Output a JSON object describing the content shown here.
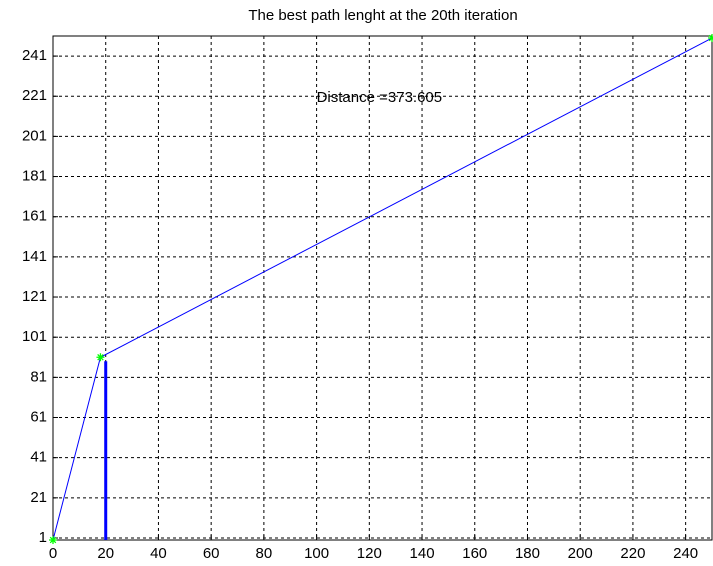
{
  "chart_data": {
    "type": "line",
    "title": "The best path lenght at the 20th iteration",
    "series": [
      {
        "color": "#0000ff",
        "line_width": 1,
        "marker": "*",
        "marker_color": "#00ff00",
        "x": [
          0,
          18,
          250
        ],
        "y": [
          0,
          91,
          250
        ]
      },
      {
        "color": "#0000ff",
        "line_width": 3,
        "x": [
          20,
          20
        ],
        "y": [
          0,
          89
        ]
      }
    ],
    "annotations": [
      {
        "text": "Distance =373.605",
        "x": 100,
        "y": 220
      }
    ],
    "xlim": [
      0,
      250
    ],
    "xticks": [
      0,
      20,
      40,
      60,
      80,
      100,
      120,
      140,
      160,
      180,
      200,
      220,
      240
    ],
    "ylim": [
      0,
      251
    ],
    "yticks": [
      1,
      21,
      41,
      61,
      81,
      101,
      121,
      141,
      161,
      181,
      201,
      221,
      241
    ],
    "grid": true
  }
}
